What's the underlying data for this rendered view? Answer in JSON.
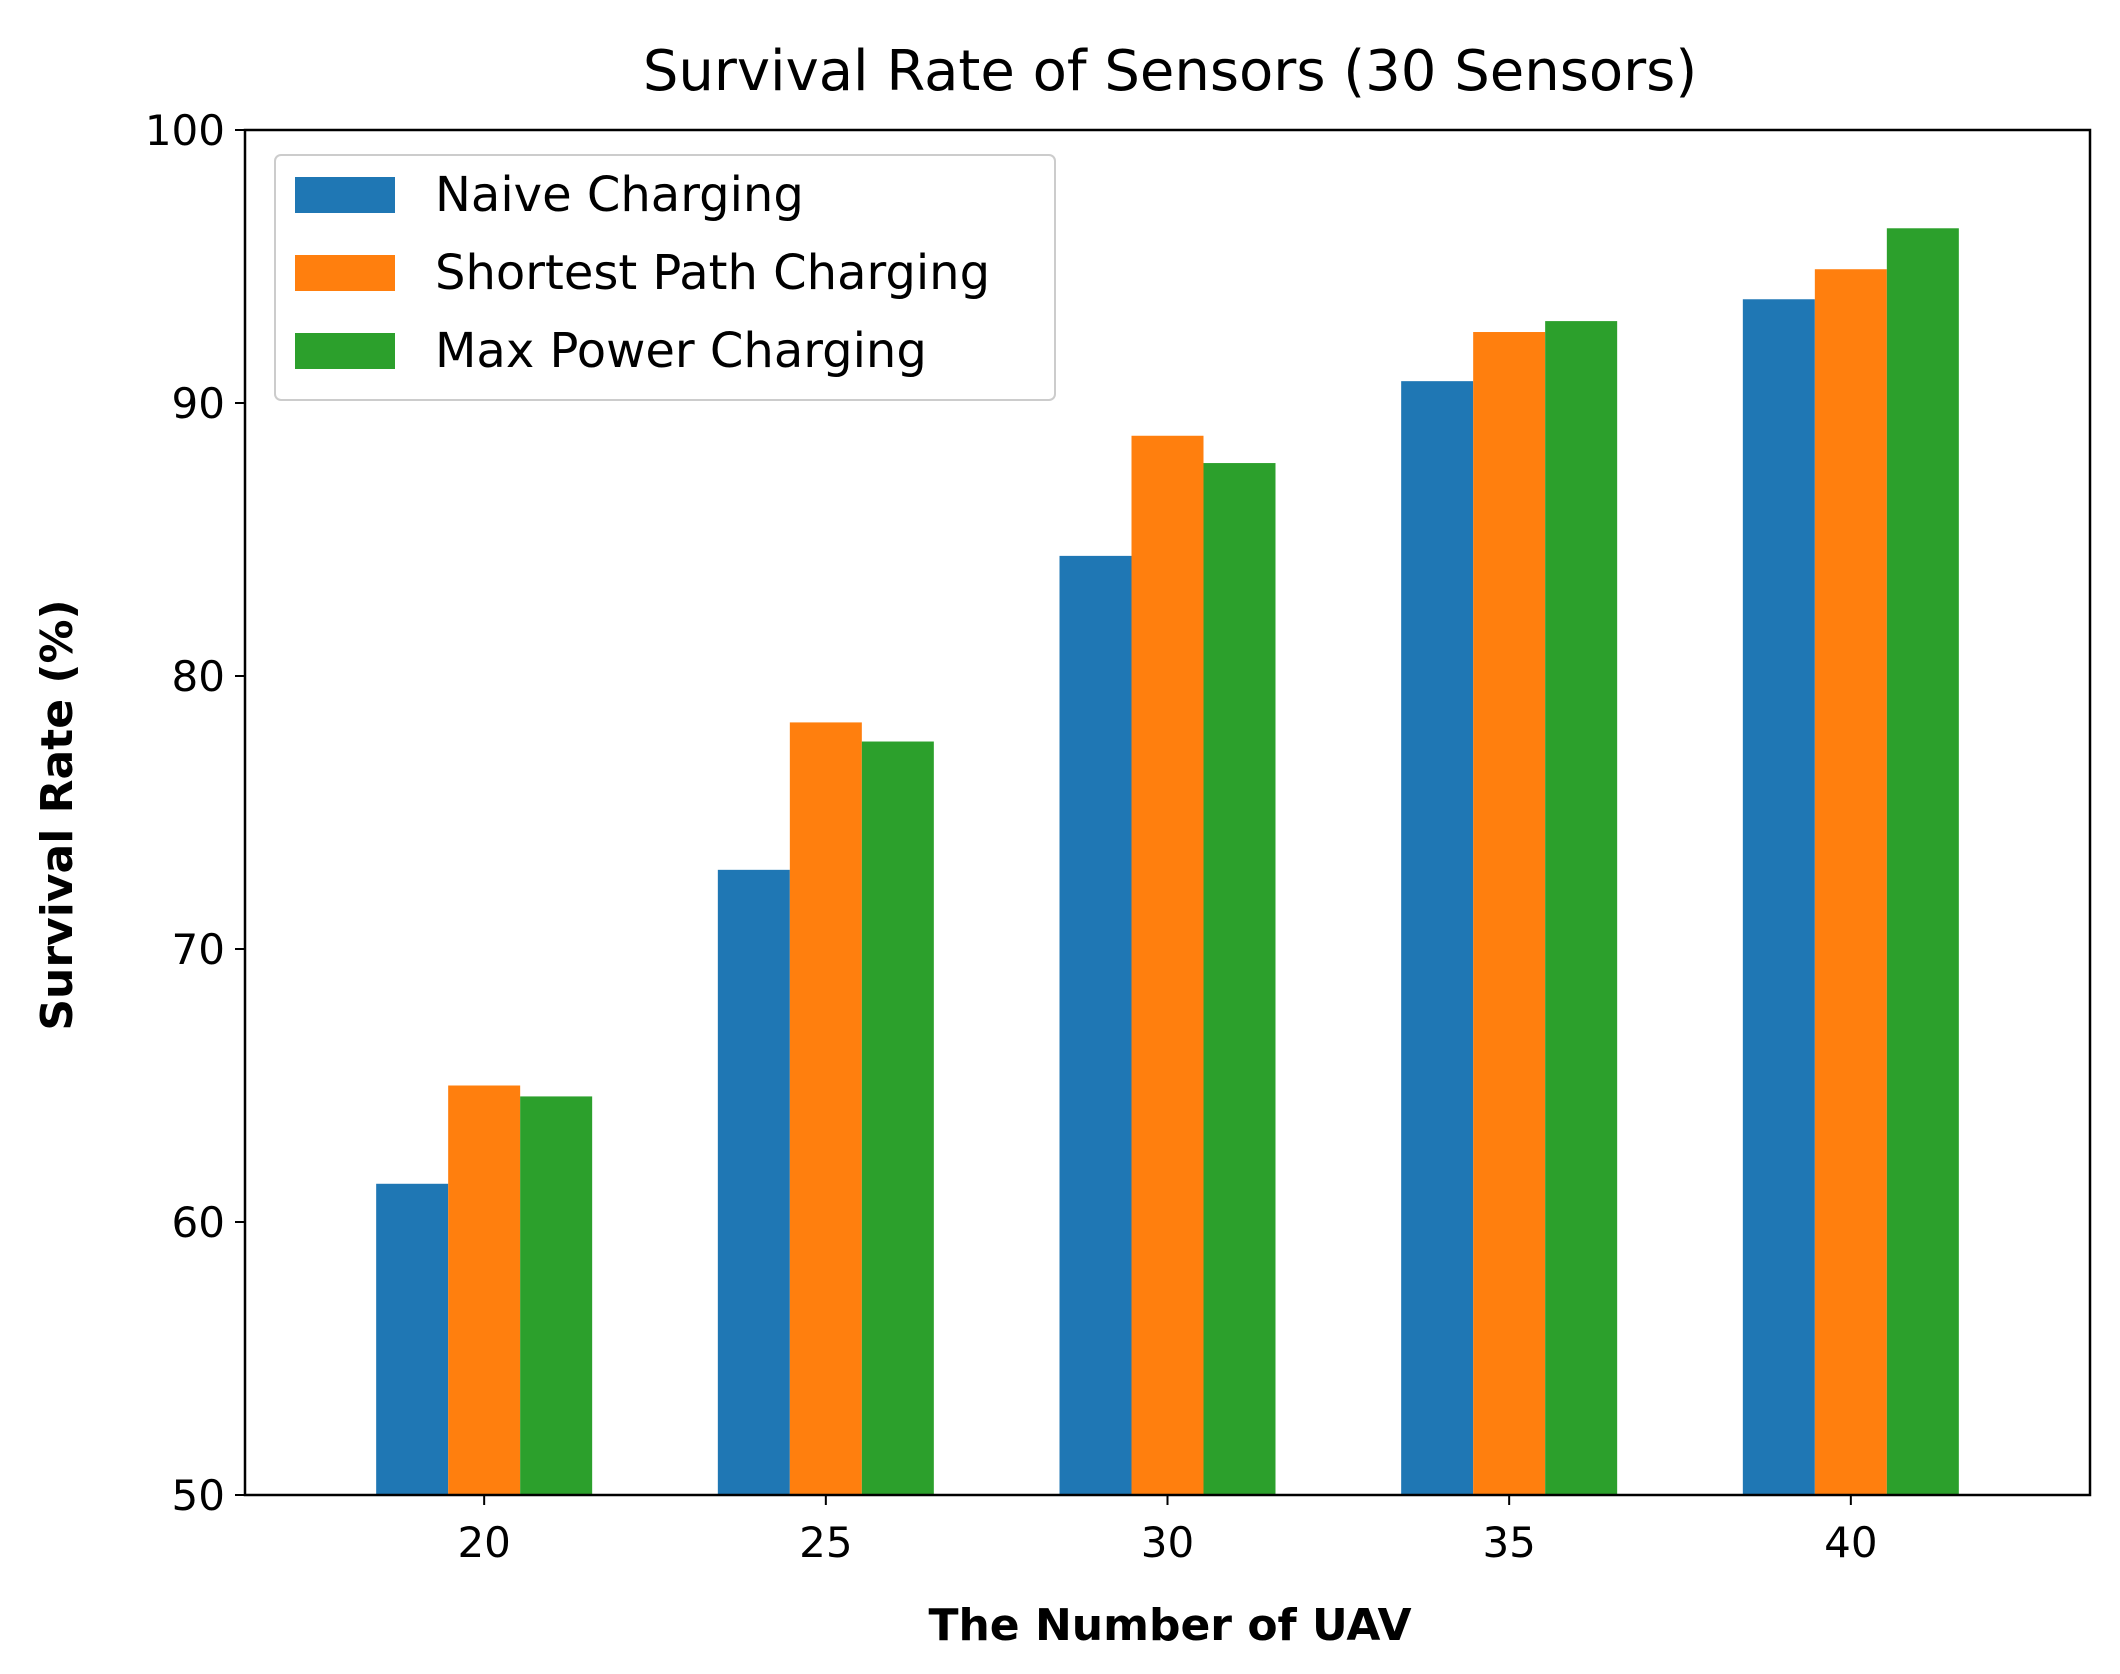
{
  "chart_data": {
    "type": "bar",
    "title": "Survival Rate of Sensors (30 Sensors)",
    "xlabel": "The Number of UAV",
    "ylabel": "Survival Rate (%)",
    "categories": [
      "20",
      "25",
      "30",
      "35",
      "40"
    ],
    "ylim": [
      50,
      100
    ],
    "yticks": [
      50,
      60,
      70,
      80,
      90,
      100
    ],
    "series": [
      {
        "name": "Naive Charging",
        "color": "#1f77b4",
        "values": [
          61.4,
          72.9,
          84.4,
          90.8,
          93.8
        ]
      },
      {
        "name": "Shortest Path Charging",
        "color": "#ff7f0e",
        "values": [
          65.0,
          78.3,
          88.8,
          92.6,
          94.9
        ]
      },
      {
        "name": "Max Power Charging",
        "color": "#2ca02c",
        "values": [
          64.6,
          77.6,
          87.8,
          93.0,
          96.4
        ]
      }
    ],
    "legend_position": "top-left",
    "grid": false
  }
}
